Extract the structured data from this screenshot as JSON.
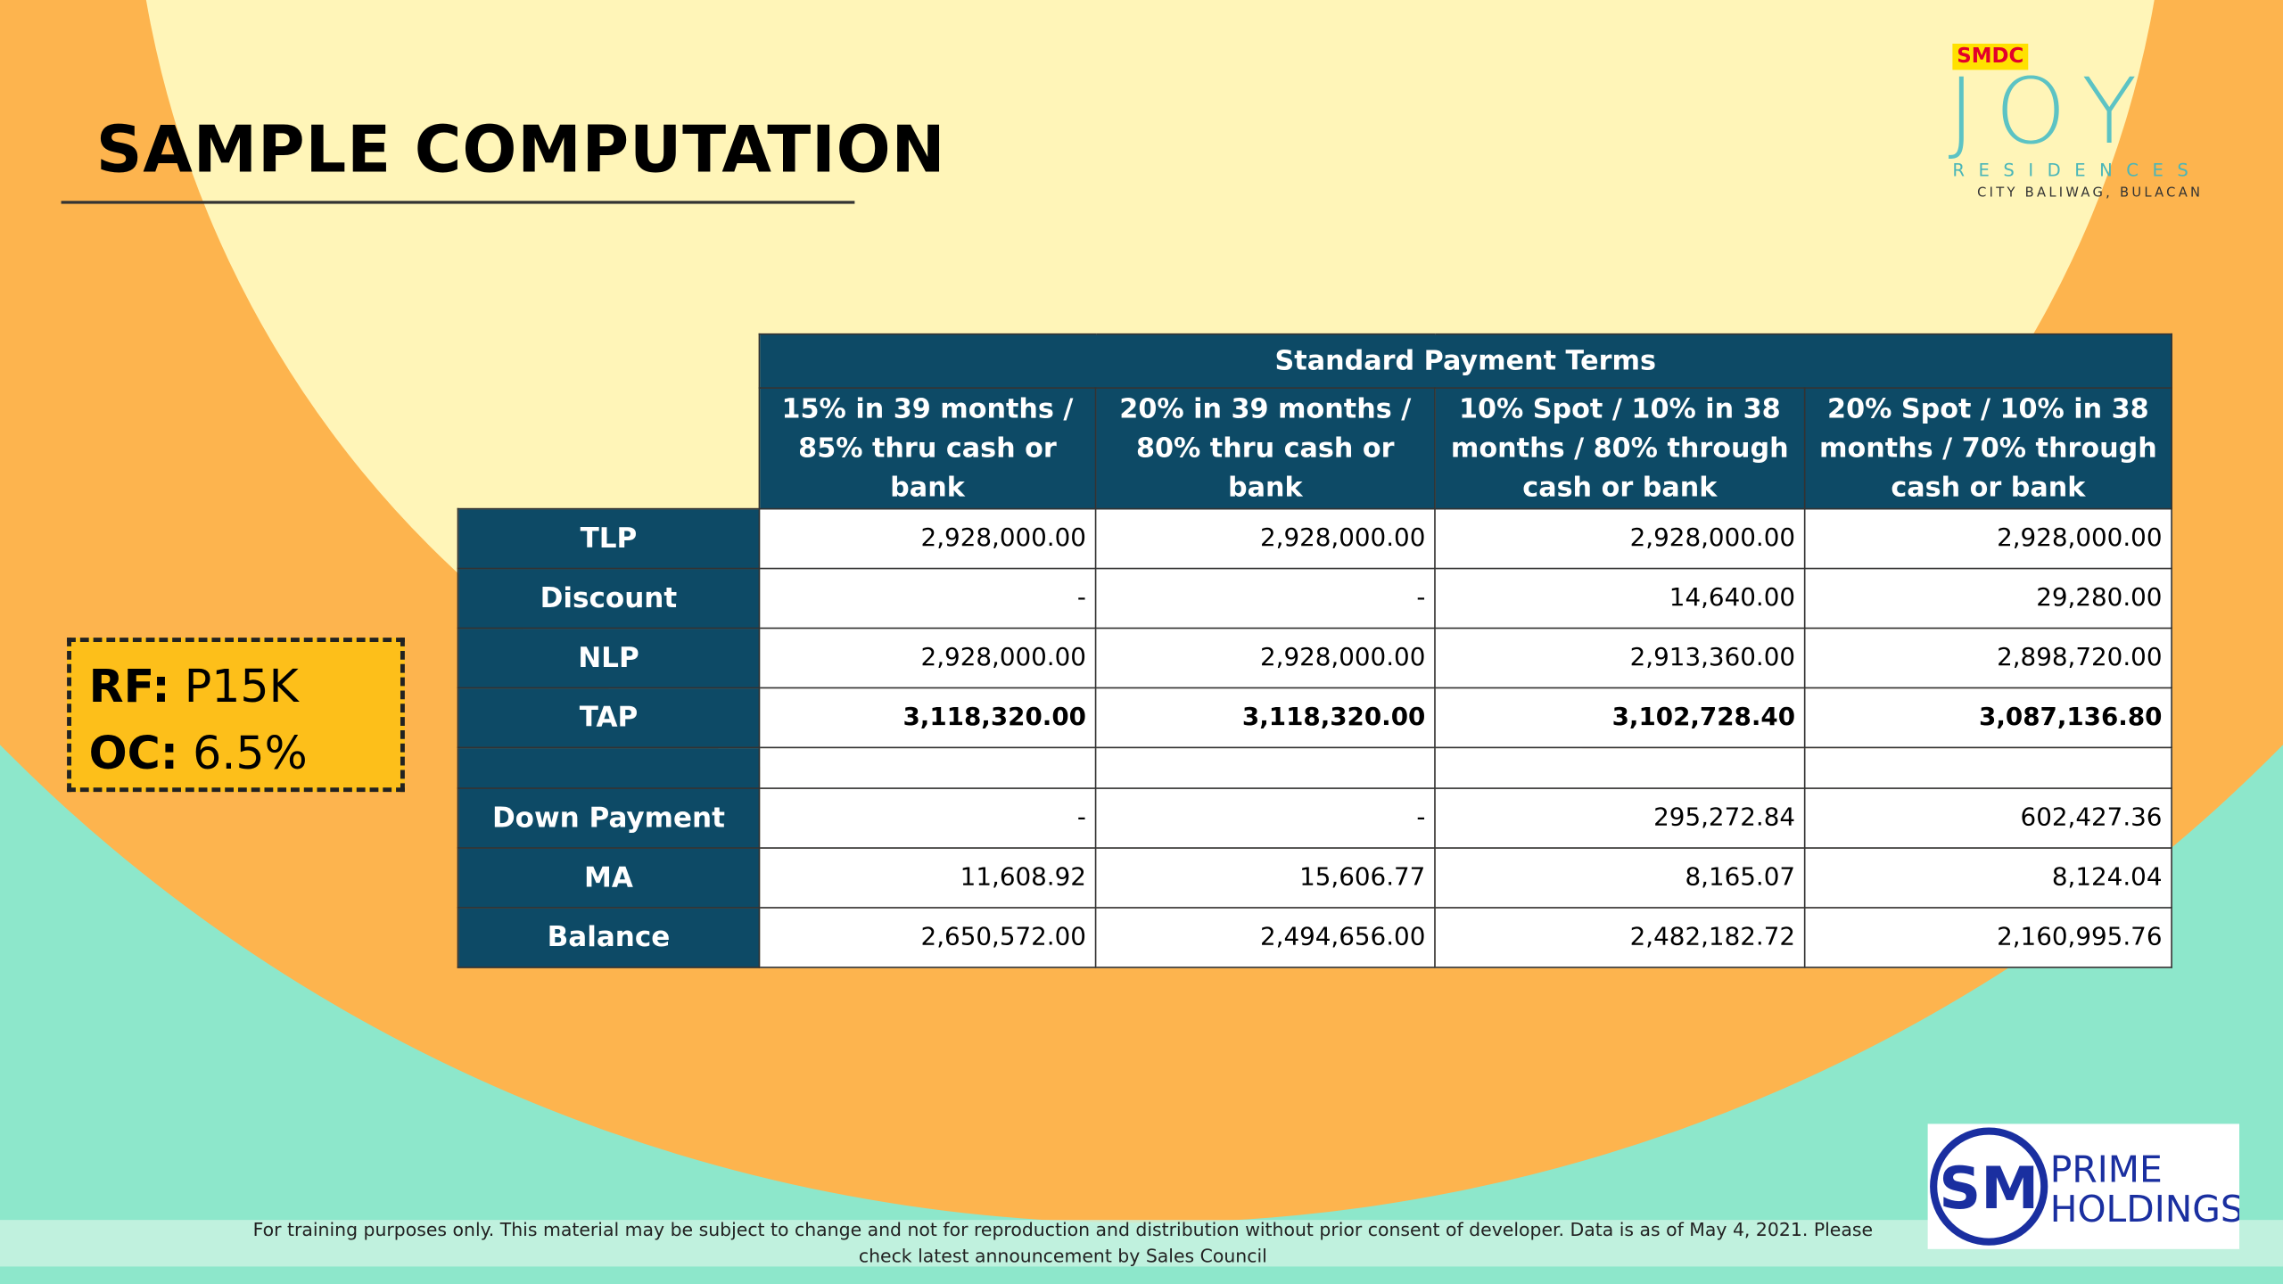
{
  "header": {
    "title": "SAMPLE COMPUTATION"
  },
  "brand": {
    "badge": "SMDC",
    "name": "JOY",
    "sub": "RESIDENCES",
    "location": "CITY BALIWAG, BULACAN"
  },
  "info": [
    {
      "label": "RF:",
      "value": "P15K"
    },
    {
      "label": "OC:",
      "value": "6.5%"
    }
  ],
  "table": {
    "group_header": "Standard Payment Terms",
    "columns": [
      "15% in 39 months / 85% thru cash or bank",
      "20% in 39 months / 80% thru cash or bank",
      "10% Spot / 10% in 38 months / 80% through cash or bank",
      "20% Spot / 10% in 38 months / 70% through cash or bank"
    ],
    "rows": [
      [
        "TLP",
        "2,928,000.00",
        "2,928,000.00",
        "2,928,000.00",
        "2,928,000.00"
      ],
      [
        "Discount",
        "-",
        "-",
        "14,640.00",
        "29,280.00"
      ],
      [
        "NLP",
        "2,928,000.00",
        "2,928,000.00",
        "2,913,360.00",
        "2,898,720.00"
      ],
      [
        "TAP",
        "3,118,320.00",
        "3,118,320.00",
        "3,102,728.40",
        "3,087,136.80"
      ],
      [
        "Down Payment",
        "-",
        "-",
        "295,272.84",
        "602,427.36"
      ],
      [
        "MA",
        "11,608.92",
        "15,606.77",
        "8,165.07",
        "8,124.04"
      ],
      [
        "Balance",
        "2,650,572.00",
        "2,494,656.00",
        "2,482,182.72",
        "2,160,995.76"
      ]
    ]
  },
  "footer": {
    "note": "For training purposes only. This material may be subject to change and not for reproduction and distribution without prior consent of developer. Data is as of May 4, 2021. Please check latest announcement by Sales Council"
  },
  "sm_logo": {
    "mark": "SM",
    "line1": "PRIME",
    "line2": "HOLDINGS"
  }
}
